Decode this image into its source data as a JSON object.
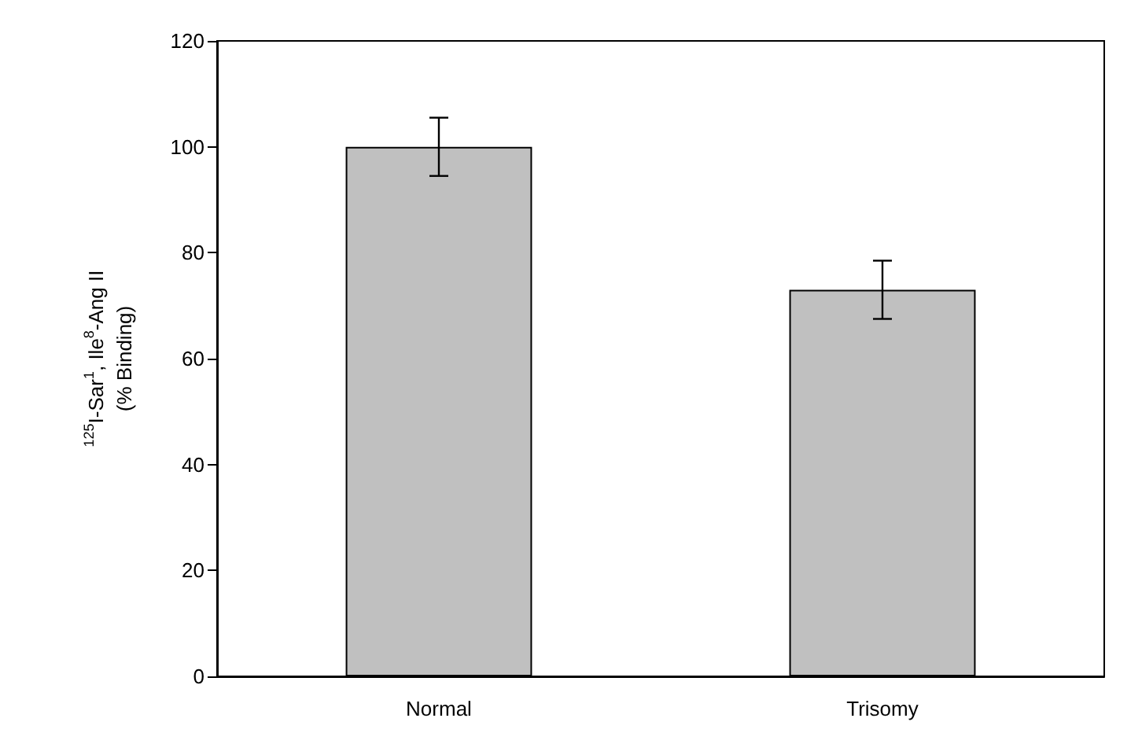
{
  "chart_data": {
    "type": "bar",
    "ylabel": "$^{125}$I-Sar$^{1}$, Ile$^{8}$-Ang II\n(% Binding)",
    "categories": [
      "Normal",
      "Trisomy"
    ],
    "values": [
      100,
      73
    ],
    "errors": [
      5.5,
      5.5
    ],
    "color": "#c0c0c0",
    "ylim": [
      0,
      120
    ],
    "yticks": [
      0,
      20,
      40,
      60,
      80,
      100,
      120
    ],
    "grid": false
  }
}
